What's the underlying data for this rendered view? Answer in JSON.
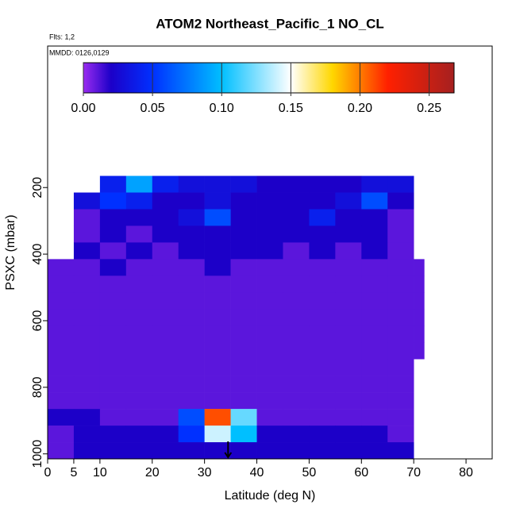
{
  "chart_data": {
    "type": "heatmap",
    "title": "ATOM2 Northeast_Pacific_1 NO_CL",
    "subtitle": "Flts: 1,2",
    "annotation": "MMDD: 0126,0129",
    "x_label": "Latitude (deg N)",
    "y_label": "PSXC (mbar)",
    "xlim": [
      0,
      85
    ],
    "xticks": [
      0,
      5,
      10,
      20,
      30,
      40,
      50,
      60,
      70,
      80
    ],
    "ylim": [
      1015,
      -225
    ],
    "yticks": [
      200,
      400,
      600,
      800,
      1000
    ],
    "xbins": [
      0,
      5,
      10,
      15,
      20,
      25,
      30,
      35,
      40,
      45,
      50,
      55,
      60,
      65,
      70,
      72
    ],
    "ybins": [
      165,
      215,
      265,
      315,
      365,
      415,
      465,
      515,
      565,
      615,
      665,
      715,
      765,
      815,
      865,
      915,
      965,
      1015
    ],
    "z": [
      [
        null,
        null,
        0.04,
        0.09,
        0.04,
        0.03,
        0.03,
        0.03,
        0.02,
        0.02,
        0.02,
        0.02,
        0.03,
        0.03,
        null
      ],
      [
        null,
        0.03,
        0.05,
        0.04,
        0.02,
        0.02,
        0.03,
        0.02,
        0.02,
        0.02,
        0.02,
        0.03,
        0.06,
        0.02,
        null
      ],
      [
        null,
        0.01,
        0.02,
        0.02,
        0.02,
        0.03,
        0.06,
        0.02,
        0.02,
        0.02,
        0.04,
        0.02,
        0.02,
        0.01,
        null
      ],
      [
        null,
        0.01,
        0.02,
        0.01,
        0.02,
        0.02,
        0.02,
        0.02,
        0.02,
        0.02,
        0.02,
        0.02,
        0.02,
        0.01,
        null
      ],
      [
        null,
        0.02,
        0.01,
        0.02,
        0.01,
        0.02,
        0.02,
        0.02,
        0.02,
        0.01,
        0.02,
        0.01,
        0.02,
        0.01,
        null
      ],
      [
        0.01,
        0.01,
        0.02,
        0.01,
        0.01,
        0.01,
        0.02,
        0.01,
        0.01,
        0.01,
        0.01,
        0.01,
        0.01,
        0.01,
        0.01
      ],
      [
        0.01,
        0.01,
        0.01,
        0.01,
        0.01,
        0.01,
        0.01,
        0.01,
        0.01,
        0.01,
        0.01,
        0.01,
        0.01,
        0.01,
        0.01
      ],
      [
        0.01,
        0.01,
        0.01,
        0.01,
        0.01,
        0.01,
        0.01,
        0.01,
        0.01,
        0.01,
        0.01,
        0.01,
        0.01,
        0.01,
        0.01
      ],
      [
        0.01,
        0.01,
        0.01,
        0.01,
        0.01,
        0.01,
        0.01,
        0.01,
        0.01,
        0.01,
        0.01,
        0.01,
        0.01,
        0.01,
        0.01
      ],
      [
        0.01,
        0.01,
        0.01,
        0.01,
        0.01,
        0.01,
        0.01,
        0.01,
        0.01,
        0.01,
        0.01,
        0.01,
        0.01,
        0.01,
        0.01
      ],
      [
        0.01,
        0.01,
        0.01,
        0.01,
        0.01,
        0.01,
        0.01,
        0.01,
        0.01,
        0.01,
        0.01,
        0.01,
        0.01,
        0.01,
        0.01
      ],
      [
        0.01,
        0.01,
        0.01,
        0.01,
        0.01,
        0.01,
        0.01,
        0.01,
        0.01,
        0.01,
        0.01,
        0.01,
        0.01,
        0.01,
        null
      ],
      [
        0.01,
        0.01,
        0.01,
        0.01,
        0.01,
        0.01,
        0.01,
        0.01,
        0.01,
        0.01,
        0.01,
        0.01,
        0.01,
        0.01,
        null
      ],
      [
        0.01,
        0.01,
        0.01,
        0.01,
        0.01,
        0.01,
        0.01,
        0.01,
        0.01,
        0.01,
        0.01,
        0.01,
        0.01,
        0.01,
        null
      ],
      [
        0.02,
        0.02,
        0.01,
        0.01,
        0.01,
        0.06,
        0.21,
        0.12,
        0.01,
        0.01,
        0.01,
        0.01,
        0.01,
        0.01,
        null
      ],
      [
        0.01,
        0.02,
        0.02,
        0.02,
        0.02,
        0.05,
        0.14,
        0.1,
        0.02,
        0.02,
        0.02,
        0.02,
        0.02,
        0.01,
        null
      ],
      [
        0.01,
        0.02,
        0.02,
        0.02,
        0.02,
        0.02,
        0.02,
        0.02,
        0.02,
        0.02,
        0.02,
        0.02,
        0.02,
        0.02,
        null
      ]
    ],
    "colorbar_lim": [
      0,
      0.268
    ],
    "colorbar_ticks": [
      {
        "value": 0,
        "label": "0.00"
      },
      {
        "value": 0.05,
        "label": "0.05"
      },
      {
        "value": 0.1,
        "label": "0.10"
      },
      {
        "value": 0.15,
        "label": "0.15"
      },
      {
        "value": 0.2,
        "label": "0.20"
      },
      {
        "value": 0.25,
        "label": "0.25"
      }
    ],
    "colorscale": [
      {
        "value": 0,
        "color": "#9a2cf0"
      },
      {
        "value": 0.02,
        "color": "#1c00c8"
      },
      {
        "value": 0.05,
        "color": "#0030ff"
      },
      {
        "value": 0.1,
        "color": "#00bfff"
      },
      {
        "value": 0.15,
        "color": "#ffffff"
      },
      {
        "value": 0.18,
        "color": "#ffd700"
      },
      {
        "value": 0.22,
        "color": "#ff2000"
      },
      {
        "value": 0.268,
        "color": "#a52020"
      }
    ],
    "marker_lat": 34.5
  }
}
